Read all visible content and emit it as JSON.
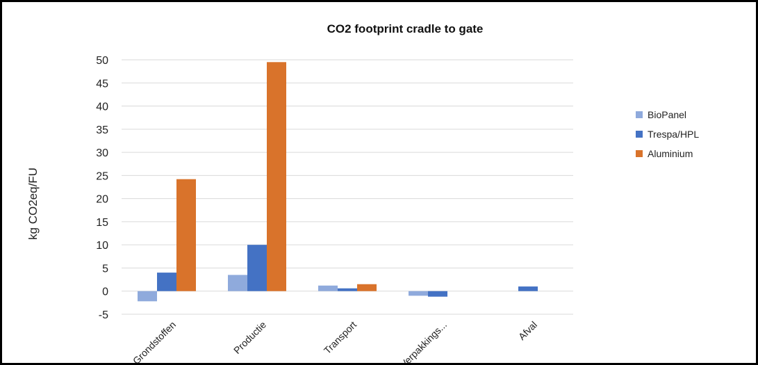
{
  "chart_data": {
    "type": "bar",
    "title": "CO2 footprint cradle to gate",
    "xlabel": "",
    "ylabel": "kg CO2eq/FU",
    "categories": [
      "Grondstoffen",
      "Productie",
      "Transport",
      "Verpakkings...",
      "Afval"
    ],
    "series": [
      {
        "name": "BioPanel",
        "color": "#8faadc",
        "values": [
          -2.2,
          3.5,
          1.2,
          -1.0,
          0
        ]
      },
      {
        "name": "Trespa/HPL",
        "color": "#4472c4",
        "values": [
          4.0,
          10.0,
          0.6,
          -1.2,
          1.0
        ]
      },
      {
        "name": "Aluminium",
        "color": "#d9732b",
        "values": [
          24.2,
          49.5,
          1.5,
          0,
          0
        ]
      }
    ],
    "ylim": [
      -5,
      50
    ],
    "yticks": [
      -5,
      0,
      5,
      10,
      15,
      20,
      25,
      30,
      35,
      40,
      45,
      50
    ],
    "grid": true,
    "legend": "right"
  }
}
